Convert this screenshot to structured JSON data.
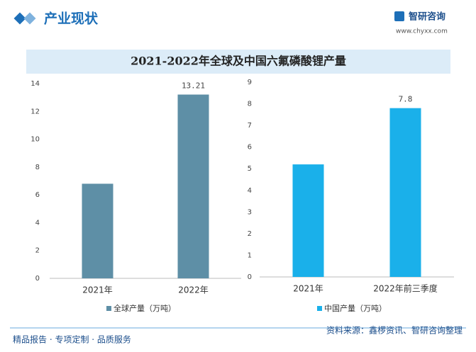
{
  "header": {
    "title": "产业现状",
    "brand": "智研咨询",
    "url": "www.chyxx.com"
  },
  "footer": {
    "left": "精品报告 · 专项定制 · 品质服务",
    "source": "资料来源：鑫椤资讯、智研咨询整理"
  },
  "chart_data": [
    {
      "type": "bar",
      "title": "2021-2022年全球及中国六氟磷酸锂产量",
      "categories": [
        "2021年",
        "2022年"
      ],
      "series": [
        {
          "name": "全球产量（万吨）",
          "color": "#5e8fa6",
          "values": [
            6.8,
            13.21
          ],
          "value_labels": [
            null,
            "13.21"
          ]
        }
      ],
      "ylim": [
        0,
        14
      ],
      "yticks": [
        0,
        2,
        4,
        6,
        8,
        10,
        12,
        14
      ],
      "grid": false,
      "legend": "bottom"
    },
    {
      "type": "bar",
      "categories": [
        "2021年",
        "2022年前三季度"
      ],
      "series": [
        {
          "name": "中国产量（万吨）",
          "color": "#1ab0ea",
          "values": [
            5.2,
            7.8
          ],
          "value_labels": [
            null,
            "7.8"
          ]
        }
      ],
      "ylim": [
        0,
        9
      ],
      "yticks": [
        0,
        1,
        2,
        3,
        4,
        5,
        6,
        7,
        8,
        9
      ],
      "grid": false,
      "legend": "bottom"
    }
  ]
}
